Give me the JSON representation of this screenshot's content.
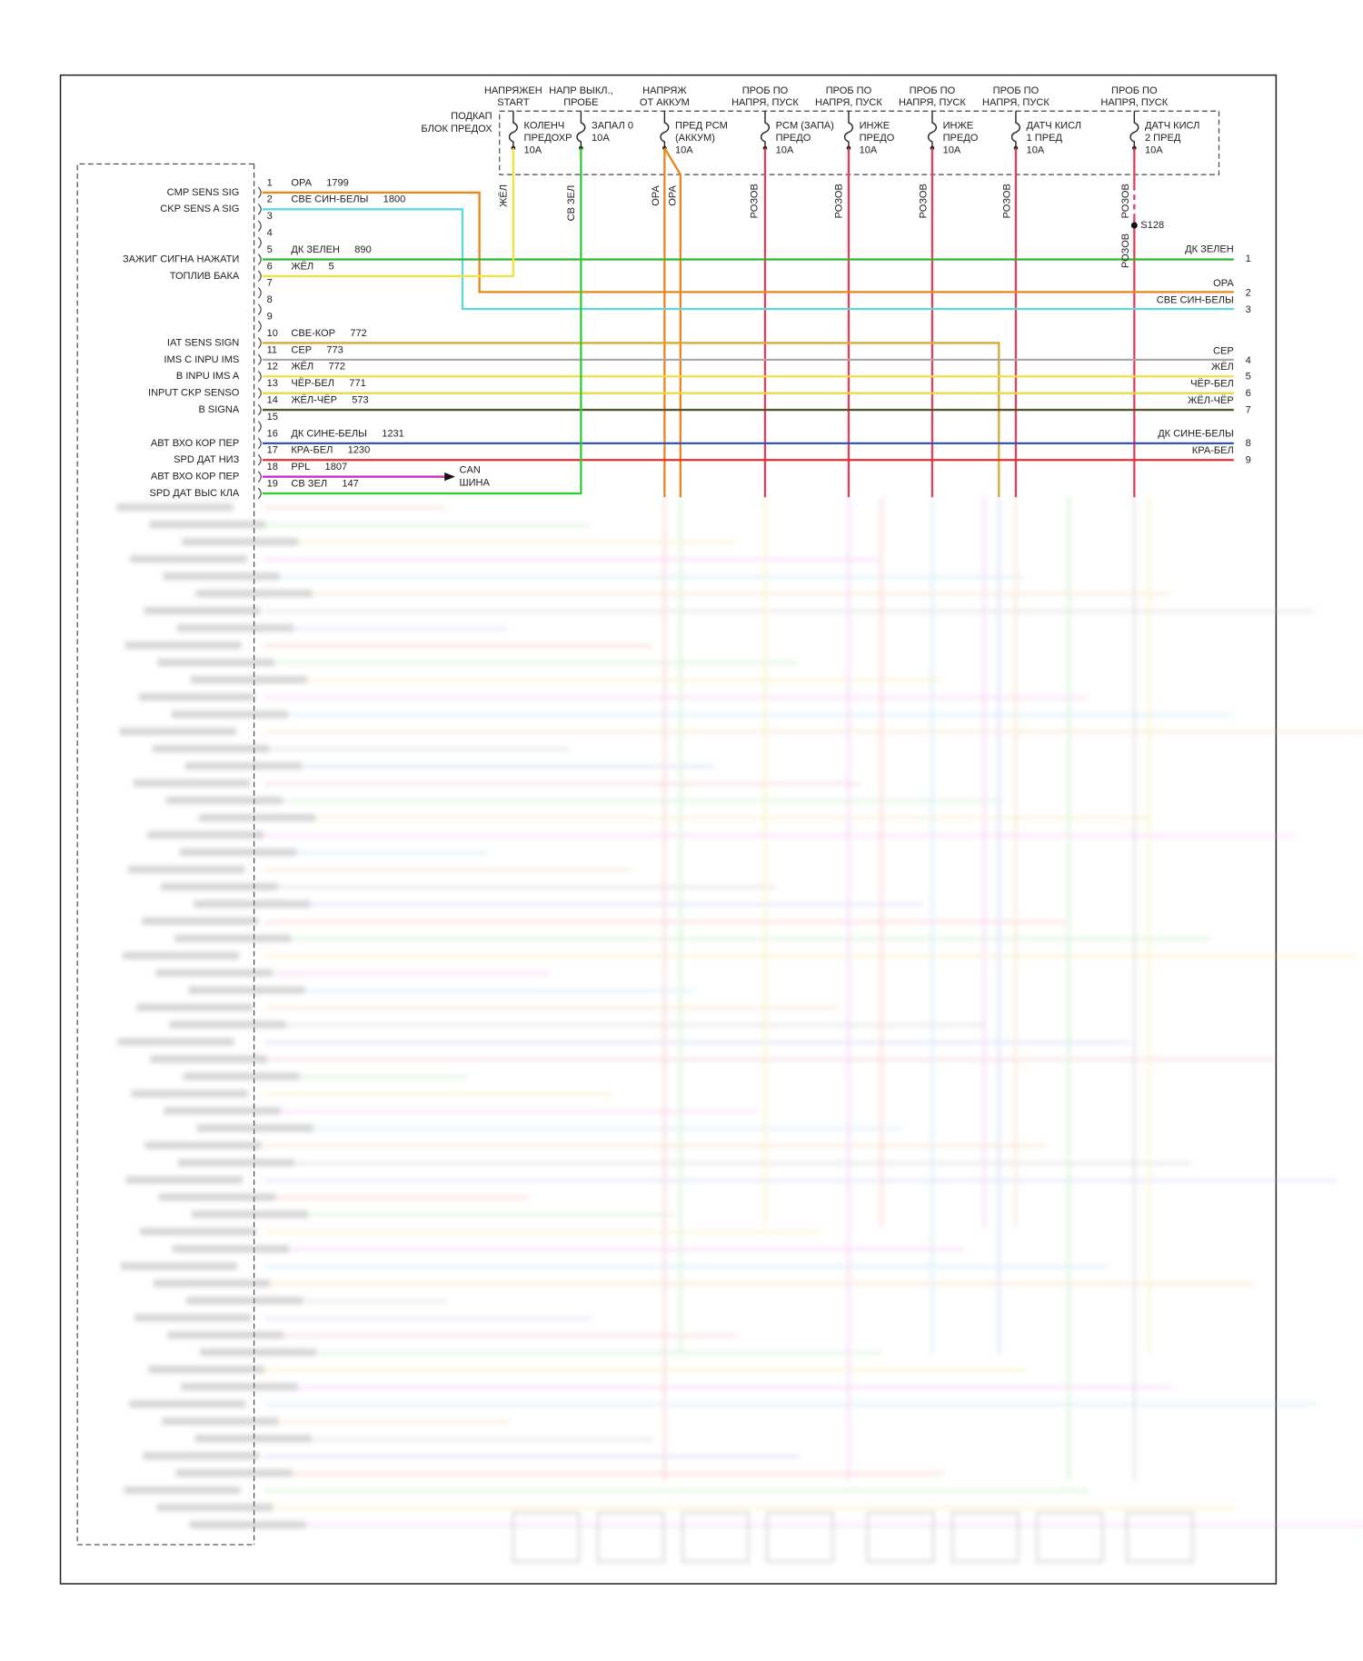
{
  "fuse_block_label": [
    "ПОДКАП",
    "БЛОК ПРЕДОХ"
  ],
  "fuses": [
    {
      "supply": [
        "НАПРЯЖЕН",
        "START"
      ],
      "label": [
        "КОЛЕНЧ",
        "ПРЕДОХР",
        "10А"
      ]
    },
    {
      "supply": [
        "НАПР ВЫКЛ.,",
        "ПРОБЕ"
      ],
      "label": [
        "ЗАПАЛ 0",
        "10А"
      ]
    },
    {
      "supply": [
        "НАПРЯЖ",
        "ОТ АККУМ"
      ],
      "label": [
        "ПРЕД PCM",
        "(АККУМ)",
        "10А"
      ]
    },
    {
      "supply": [
        "ПРОБ ПО",
        "НАПРЯ, ПУСК"
      ],
      "label": [
        "PCM (ЗАПА)",
        "ПРЕДО",
        "10А"
      ]
    },
    {
      "supply": [
        "ПРОБ ПО",
        "НАПРЯ, ПУСК"
      ],
      "label": [
        "ИНЖЕ",
        "ПРЕДО",
        "10А"
      ]
    },
    {
      "supply": [
        "ПРОБ ПО",
        "НАПРЯ, ПУСК"
      ],
      "label": [
        "ИНЖЕ",
        "ПРЕДО",
        "10А"
      ]
    },
    {
      "supply": [
        "ПРОБ ПО",
        "НАПРЯ, ПУСК"
      ],
      "label": [
        "ДАТЧ КИСЛ",
        "1 ПРЕД",
        "10А"
      ]
    },
    {
      "supply": [
        "ПРОБ ПО",
        "НАПРЯ, ПУСК"
      ],
      "label": [
        "ДАТЧ КИСЛ",
        "2 ПРЕД",
        "10А"
      ]
    }
  ],
  "vertical_wire_labels": [
    "ЖЁЛ",
    "СВ ЗЕЛ",
    "ОРА",
    "ОРА",
    "РОЗОВ",
    "РОЗОВ",
    "РОЗОВ",
    "РОЗОВ",
    "РОЗОВ",
    "РОЗОВ"
  ],
  "splice": "S128",
  "pins": [
    {
      "number": "1",
      "function": "CMP SENS SIG",
      "wire": "ОРА",
      "circuit": "1799"
    },
    {
      "number": "2",
      "function": "CKP SENS A SIG",
      "wire": "СВЕ СИН-БЕЛЫ",
      "circuit": "1800"
    },
    {
      "number": "3"
    },
    {
      "number": "4"
    },
    {
      "number": "5",
      "function": "ЗАЖИГ СИГНА НАЖАТИ",
      "wire": "ДК ЗЕЛЕН",
      "circuit": "890"
    },
    {
      "number": "6",
      "function": "ТОПЛИВ БАКА",
      "wire": "ЖЁЛ",
      "circuit": "5"
    },
    {
      "number": "7"
    },
    {
      "number": "8"
    },
    {
      "number": "9"
    },
    {
      "number": "10",
      "function": "IAT SENS SIGN",
      "wire": "СВЕ-КОР",
      "circuit": "772"
    },
    {
      "number": "11",
      "function": "IMS C INPU IMS",
      "wire": "СЕР",
      "circuit": "773"
    },
    {
      "number": "12",
      "function": "B INPU IMS A",
      "wire": "ЖЁЛ",
      "circuit": "772"
    },
    {
      "number": "13",
      "function": "INPUT CKP SENSO",
      "wire": "ЧЁР-БЕЛ",
      "circuit": "771"
    },
    {
      "number": "14",
      "function": "B SIGNA",
      "wire": "ЖЁЛ-ЧЁР",
      "circuit": "573"
    },
    {
      "number": "15"
    },
    {
      "number": "16",
      "function": "АВТ ВХО КОР ПЕР",
      "wire": "ДК СИНЕ-БЕЛЫ",
      "circuit": "1231"
    },
    {
      "number": "17",
      "function": "SPD ДАТ НИЗ",
      "wire": "КРА-БЕЛ",
      "circuit": "1230"
    },
    {
      "number": "18",
      "function": "АВТ ВХО КОР ПЕР",
      "wire": "PPL",
      "circuit": "1807"
    },
    {
      "number": "19",
      "function": "SPD ДАТ ВЫС КЛА",
      "wire": "СВ ЗЕЛ",
      "circuit": "147"
    }
  ],
  "can_label": [
    "CAN",
    "ШИНА"
  ],
  "right_terminals": [
    {
      "label": "ДК ЗЕЛЕН",
      "number": "1"
    },
    {
      "label": "ОРА",
      "number": "2"
    },
    {
      "label": "СВЕ СИН-БЕЛЫ",
      "number": "3"
    },
    {
      "label": "СЕР",
      "number": "4"
    },
    {
      "label": "ЖЁЛ",
      "number": "5"
    },
    {
      "label": "ЧЁР-БЕЛ",
      "number": "6"
    },
    {
      "label": "ЖЁЛ-ЧЁР",
      "number": "7"
    },
    {
      "label": "ДК СИНЕ-БЕЛЫ",
      "number": "8"
    },
    {
      "label": "КРА-БЕЛ",
      "number": "9"
    }
  ]
}
